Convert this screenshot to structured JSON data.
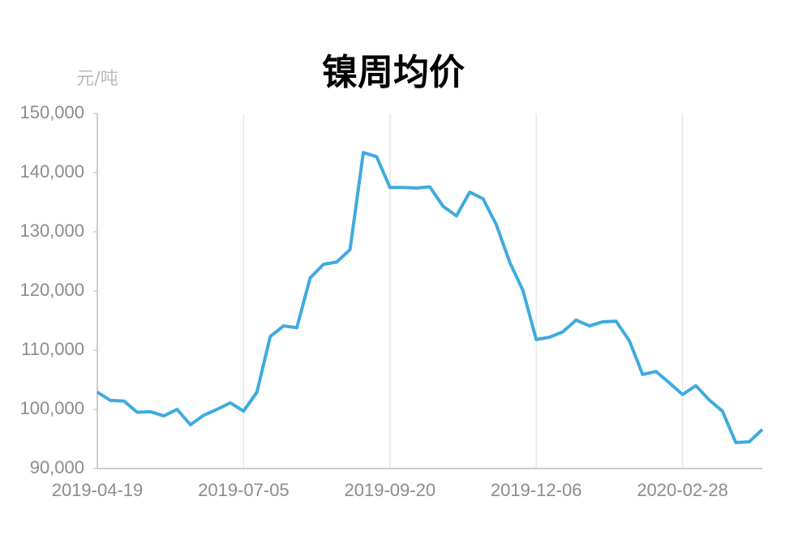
{
  "chart_data": {
    "type": "line",
    "title": "镍周均价",
    "ylabel": "元/吨",
    "categories": [
      "2019-04-19",
      null,
      null,
      null,
      null,
      null,
      null,
      null,
      null,
      null,
      null,
      "2019-07-05",
      null,
      null,
      null,
      null,
      null,
      null,
      null,
      null,
      null,
      null,
      "2019-09-20",
      null,
      null,
      null,
      null,
      null,
      null,
      null,
      null,
      null,
      null,
      "2019-12-06",
      null,
      null,
      null,
      null,
      null,
      null,
      null,
      null,
      null,
      null,
      "2020-02-28",
      null,
      null,
      null,
      null,
      null,
      null
    ],
    "series": [
      {
        "name": "镍周均价",
        "color": "#3fabdd",
        "values": [
          102900,
          101500,
          101400,
          99500,
          99600,
          98900,
          100000,
          97400,
          99000,
          100000,
          101100,
          99700,
          102900,
          112300,
          114100,
          113800,
          122200,
          124500,
          124900,
          127000,
          143400,
          142700,
          137500,
          137500,
          137400,
          137600,
          134300,
          132700,
          136700,
          135600,
          131200,
          124900,
          120100,
          111800,
          112200,
          113100,
          115100,
          114100,
          114800,
          114900,
          111600,
          105900,
          106400,
          104500,
          102500,
          104000,
          101600,
          99700,
          94400,
          94500,
          96600
        ]
      }
    ],
    "ylim": [
      90000,
      150000
    ],
    "yticks": [
      {
        "value": 90000,
        "label": "90,000"
      },
      {
        "value": 100000,
        "label": "100,000"
      },
      {
        "value": 110000,
        "label": "110,000"
      },
      {
        "value": 120000,
        "label": "120,000"
      },
      {
        "value": 130000,
        "label": "130,000"
      },
      {
        "value": 140000,
        "label": "140,000"
      },
      {
        "value": 150000,
        "label": "150,000"
      }
    ],
    "grid": "x"
  }
}
